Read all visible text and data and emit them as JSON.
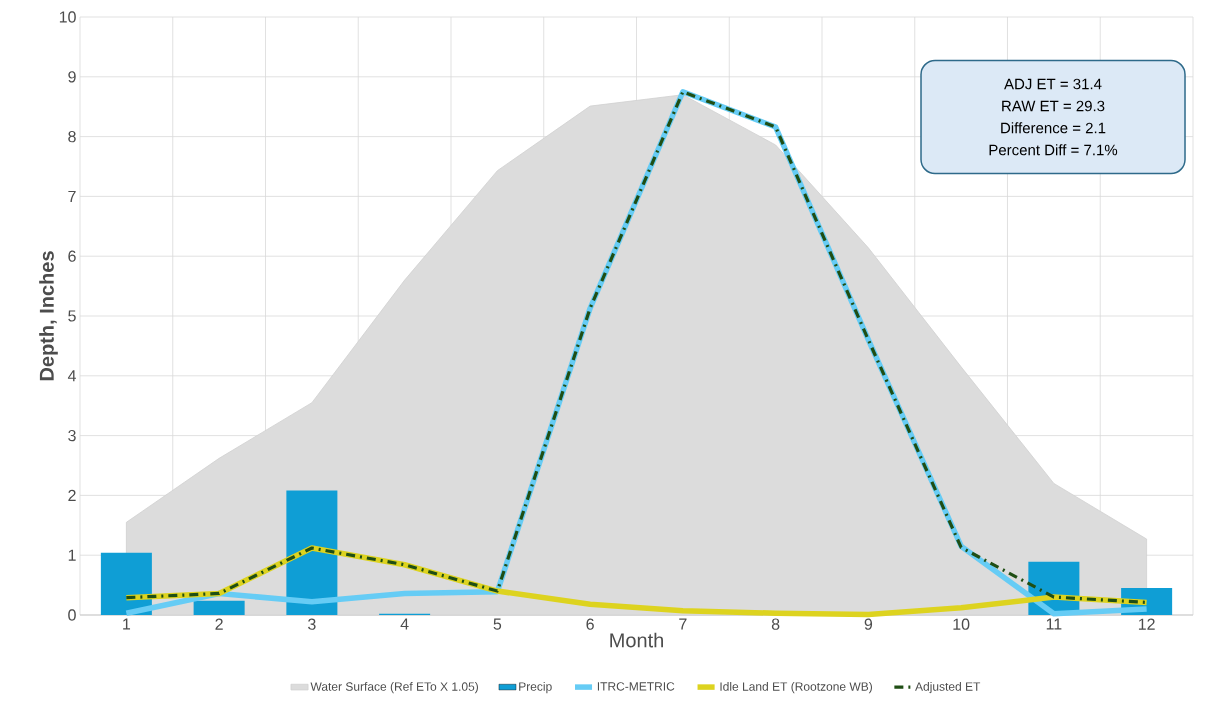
{
  "chart_data": {
    "type": "line",
    "xlabel": "Month",
    "ylabel": "Depth, Inches",
    "categories": [
      "1",
      "2",
      "3",
      "4",
      "5",
      "6",
      "7",
      "8",
      "9",
      "10",
      "11",
      "12"
    ],
    "series": [
      {
        "name": "Water Surface (Ref ETo X 1.05)",
        "type": "area",
        "color": "#dcdcdc",
        "values": [
          1.55,
          2.62,
          3.55,
          5.6,
          7.43,
          8.51,
          8.7,
          7.86,
          6.14,
          4.15,
          2.2,
          1.27
        ]
      },
      {
        "name": "Precip",
        "type": "bar",
        "color": "#0f9ed5",
        "values": [
          1.04,
          0.24,
          2.08,
          0.02,
          0,
          0,
          0,
          0,
          0,
          0,
          0.89,
          0.45
        ]
      },
      {
        "name": "ITRC-METRIC",
        "color": "#66ccf5",
        "line_style": "solid",
        "values": [
          0.03,
          0.36,
          0.22,
          0.36,
          0.39,
          5.13,
          8.75,
          8.16,
          4.6,
          1.15,
          0.02,
          0.1
        ]
      },
      {
        "name": "Idle Land ET (Rootzone WB)",
        "color": "#ddd31f",
        "line_style": "solid",
        "values": [
          0.29,
          0.36,
          1.12,
          0.84,
          0.4,
          0.18,
          0.07,
          0.03,
          0.01,
          0.12,
          0.3,
          0.21
        ]
      },
      {
        "name": "Adjusted ET",
        "color": "#1f4e14",
        "line_style": "dashed",
        "values": [
          0.29,
          0.36,
          1.12,
          0.84,
          0.4,
          5.13,
          8.75,
          8.16,
          4.6,
          1.13,
          0.3,
          0.21
        ]
      }
    ],
    "ylim": [
      0,
      10
    ],
    "yticks": [
      0,
      1,
      2,
      3,
      4,
      5,
      6,
      7,
      8,
      9,
      10
    ],
    "grid": true,
    "legend": "bottom",
    "marker": "none",
    "annotations": [
      "ADJ ET  = 31.4",
      "RAW ET = 29.3",
      "Difference = 2.1",
      "Percent Diff = 7.1%"
    ]
  }
}
